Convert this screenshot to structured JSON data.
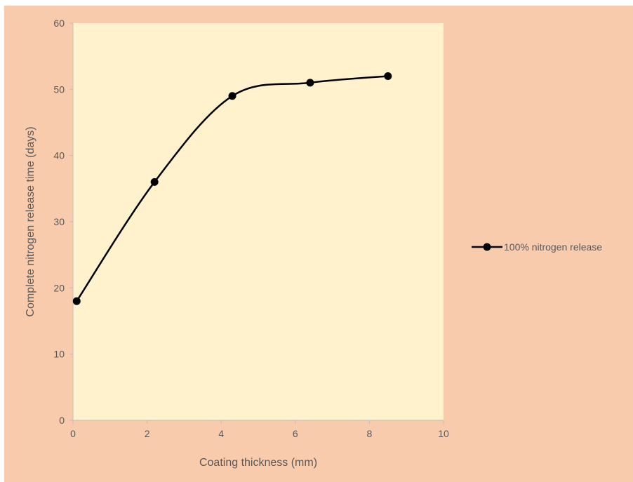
{
  "colors": {
    "chart_background": "#F8CBAD",
    "plot_background": "#FFF2CC",
    "series_line": "#000000"
  },
  "chart_data": {
    "type": "line",
    "smooth": true,
    "title": "",
    "xlabel": "Coating thickness (mm)",
    "ylabel": "Complete nitrogen release time (days)",
    "xlim": [
      0,
      10
    ],
    "ylim": [
      0,
      60
    ],
    "x_ticks": [
      "0",
      "2",
      "4",
      "6",
      "8",
      "10"
    ],
    "y_ticks": [
      "0",
      "10",
      "20",
      "30",
      "40",
      "50",
      "60"
    ],
    "grid": false,
    "legend_position": "right",
    "series": [
      {
        "name": "100% nitrogen release",
        "marker": "circle",
        "x": [
          0.1,
          2.2,
          4.3,
          6.4,
          8.5
        ],
        "y": [
          18,
          36,
          49,
          51,
          52
        ]
      }
    ]
  }
}
